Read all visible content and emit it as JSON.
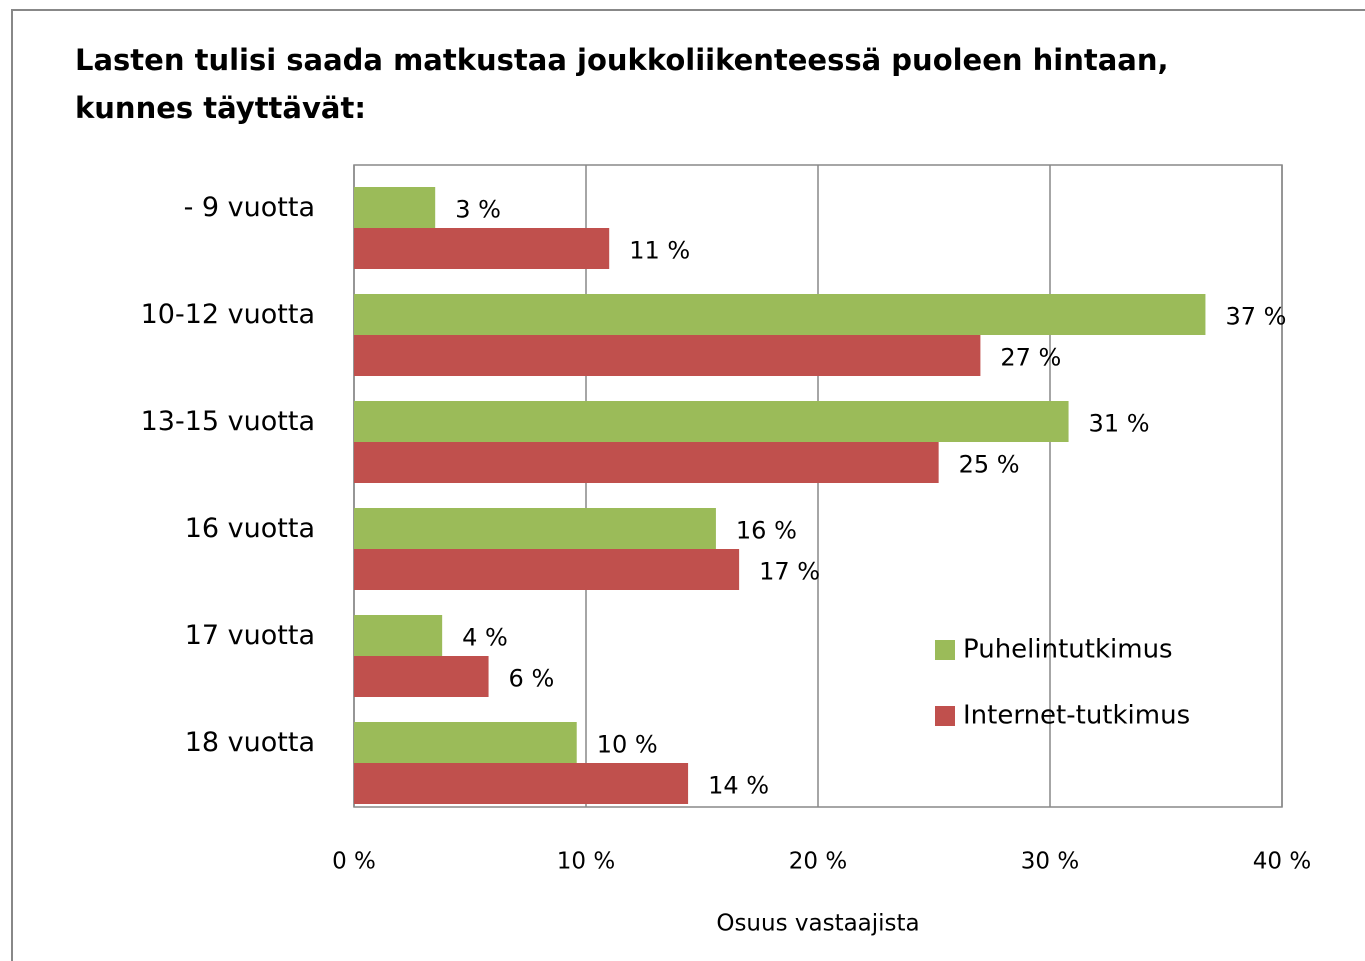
{
  "chart_data": {
    "type": "hbar",
    "title": [
      "Lasten tulisi saada matkustaa  joukkoliikenteessä  puoleen hintaan,",
      "kunnes täyttävät:"
    ],
    "x_label": "Osuus vastaajista",
    "categories": [
      "- 9 vuotta",
      "10-12 vuotta",
      "13-15 vuotta",
      "16 vuotta",
      "17 vuotta",
      "18 vuotta"
    ],
    "series": [
      {
        "name": "Puhelintutkimus",
        "color": "#9bbb59",
        "values": [
          3.5,
          36.7,
          30.8,
          15.6,
          3.8,
          9.6
        ],
        "value_labels": [
          "3 %",
          "37 %",
          "31 %",
          "16 %",
          "4 %",
          "10 %"
        ]
      },
      {
        "name": "Internet-tutkimus",
        "color": "#c0504d",
        "values": [
          11.0,
          27.0,
          25.2,
          16.6,
          5.8,
          14.4
        ],
        "value_labels": [
          "11 %",
          "27 %",
          "25 %",
          "17 %",
          "6 %",
          "14 %"
        ]
      }
    ],
    "xlim": [
      0,
      40
    ],
    "xticks": [
      {
        "value": 0,
        "label": "0 %"
      },
      {
        "value": 10,
        "label": "10 %"
      },
      {
        "value": 20,
        "label": "20 %"
      },
      {
        "value": 30,
        "label": "30 %"
      },
      {
        "value": 40,
        "label": "40 %"
      }
    ],
    "grid": true,
    "legend": "lower-right"
  }
}
